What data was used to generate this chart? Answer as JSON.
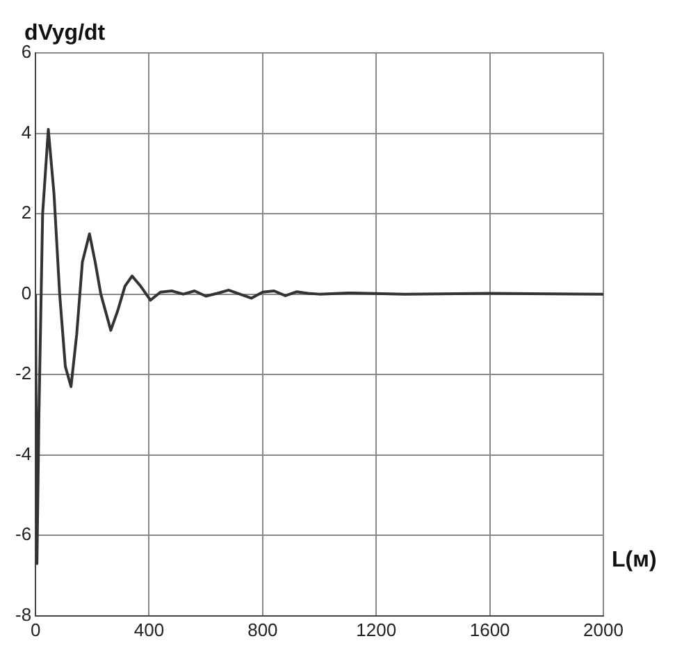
{
  "chart_data": {
    "type": "line",
    "ylabel": "dVyg/dt",
    "xlabel": "L(м)",
    "x": [
      0,
      5,
      12,
      25,
      45,
      65,
      85,
      105,
      125,
      145,
      165,
      190,
      210,
      230,
      265,
      290,
      315,
      340,
      370,
      405,
      440,
      480,
      520,
      560,
      600,
      640,
      680,
      720,
      760,
      800,
      840,
      880,
      920,
      960,
      1000,
      1100,
      1300,
      1600,
      2000
    ],
    "series": [
      {
        "color": "#333333",
        "values": [
          0,
          -6.7,
          -3,
          2,
          4.1,
          2.5,
          0,
          -1.8,
          -2.3,
          -1,
          0.8,
          1.5,
          0.8,
          0,
          -0.9,
          -0.4,
          0.2,
          0.45,
          0.2,
          -0.15,
          0.05,
          0.08,
          0,
          0.08,
          -0.05,
          0.02,
          0.1,
          0,
          -0.1,
          0.05,
          0.08,
          -0.04,
          0.06,
          0.02,
          0,
          0.03,
          0,
          0.02,
          0
        ]
      }
    ],
    "xlim": [
      0,
      2000
    ],
    "xticks": [
      0,
      400,
      800,
      1200,
      1600,
      2000
    ],
    "ylim": [
      -8,
      6
    ],
    "yticks": [
      -8,
      -6,
      -4,
      -2,
      0,
      2,
      4,
      6
    ],
    "grid": true,
    "marker": "none",
    "line_style": "solid"
  }
}
